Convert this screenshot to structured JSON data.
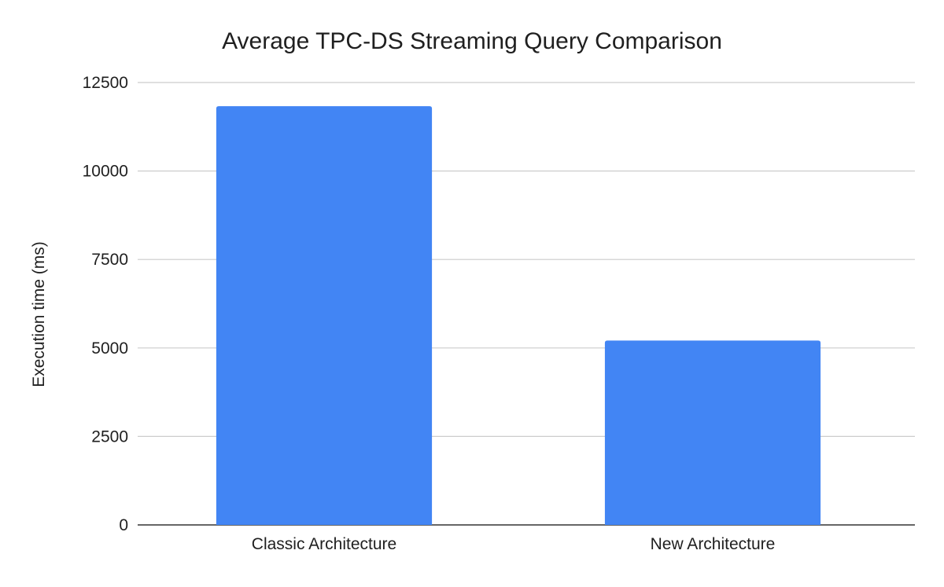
{
  "chart_data": {
    "type": "bar",
    "title": "Average TPC-DS Streaming Query Comparison",
    "xlabel": "",
    "ylabel": "Execution time (ms)",
    "categories": [
      "Classic Architecture",
      "New Architecture"
    ],
    "series": [
      {
        "values": [
          11830,
          5210
        ]
      }
    ],
    "ylim": [
      0,
      12500
    ],
    "yticks": [
      0,
      2500,
      5000,
      7500,
      10000,
      12500
    ],
    "grid": true,
    "legend": "none",
    "colors": {
      "bar": "#4285f4"
    }
  }
}
